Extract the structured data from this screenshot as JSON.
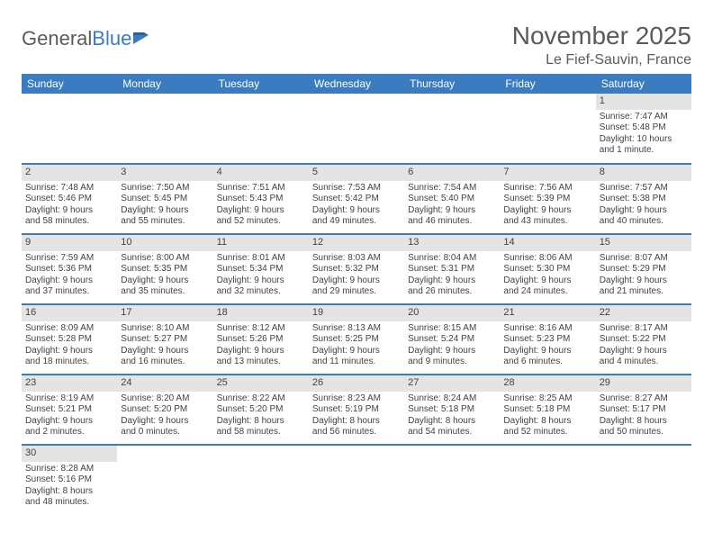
{
  "brand": {
    "part1": "General",
    "part2": "Blue"
  },
  "title": "November 2025",
  "location": "Le Fief-Sauvin, France",
  "colors": {
    "header_bg": "#3b7bbf",
    "daynum_bg": "#e4e4e4",
    "text": "#424242",
    "page_bg": "#ffffff"
  },
  "day_headers": [
    "Sunday",
    "Monday",
    "Tuesday",
    "Wednesday",
    "Thursday",
    "Friday",
    "Saturday"
  ],
  "weeks": [
    [
      null,
      null,
      null,
      null,
      null,
      null,
      {
        "n": "1",
        "sr": "Sunrise: 7:47 AM",
        "ss": "Sunset: 5:48 PM",
        "d1": "Daylight: 10 hours",
        "d2": "and 1 minute."
      }
    ],
    [
      {
        "n": "2",
        "sr": "Sunrise: 7:48 AM",
        "ss": "Sunset: 5:46 PM",
        "d1": "Daylight: 9 hours",
        "d2": "and 58 minutes."
      },
      {
        "n": "3",
        "sr": "Sunrise: 7:50 AM",
        "ss": "Sunset: 5:45 PM",
        "d1": "Daylight: 9 hours",
        "d2": "and 55 minutes."
      },
      {
        "n": "4",
        "sr": "Sunrise: 7:51 AM",
        "ss": "Sunset: 5:43 PM",
        "d1": "Daylight: 9 hours",
        "d2": "and 52 minutes."
      },
      {
        "n": "5",
        "sr": "Sunrise: 7:53 AM",
        "ss": "Sunset: 5:42 PM",
        "d1": "Daylight: 9 hours",
        "d2": "and 49 minutes."
      },
      {
        "n": "6",
        "sr": "Sunrise: 7:54 AM",
        "ss": "Sunset: 5:40 PM",
        "d1": "Daylight: 9 hours",
        "d2": "and 46 minutes."
      },
      {
        "n": "7",
        "sr": "Sunrise: 7:56 AM",
        "ss": "Sunset: 5:39 PM",
        "d1": "Daylight: 9 hours",
        "d2": "and 43 minutes."
      },
      {
        "n": "8",
        "sr": "Sunrise: 7:57 AM",
        "ss": "Sunset: 5:38 PM",
        "d1": "Daylight: 9 hours",
        "d2": "and 40 minutes."
      }
    ],
    [
      {
        "n": "9",
        "sr": "Sunrise: 7:59 AM",
        "ss": "Sunset: 5:36 PM",
        "d1": "Daylight: 9 hours",
        "d2": "and 37 minutes."
      },
      {
        "n": "10",
        "sr": "Sunrise: 8:00 AM",
        "ss": "Sunset: 5:35 PM",
        "d1": "Daylight: 9 hours",
        "d2": "and 35 minutes."
      },
      {
        "n": "11",
        "sr": "Sunrise: 8:01 AM",
        "ss": "Sunset: 5:34 PM",
        "d1": "Daylight: 9 hours",
        "d2": "and 32 minutes."
      },
      {
        "n": "12",
        "sr": "Sunrise: 8:03 AM",
        "ss": "Sunset: 5:32 PM",
        "d1": "Daylight: 9 hours",
        "d2": "and 29 minutes."
      },
      {
        "n": "13",
        "sr": "Sunrise: 8:04 AM",
        "ss": "Sunset: 5:31 PM",
        "d1": "Daylight: 9 hours",
        "d2": "and 26 minutes."
      },
      {
        "n": "14",
        "sr": "Sunrise: 8:06 AM",
        "ss": "Sunset: 5:30 PM",
        "d1": "Daylight: 9 hours",
        "d2": "and 24 minutes."
      },
      {
        "n": "15",
        "sr": "Sunrise: 8:07 AM",
        "ss": "Sunset: 5:29 PM",
        "d1": "Daylight: 9 hours",
        "d2": "and 21 minutes."
      }
    ],
    [
      {
        "n": "16",
        "sr": "Sunrise: 8:09 AM",
        "ss": "Sunset: 5:28 PM",
        "d1": "Daylight: 9 hours",
        "d2": "and 18 minutes."
      },
      {
        "n": "17",
        "sr": "Sunrise: 8:10 AM",
        "ss": "Sunset: 5:27 PM",
        "d1": "Daylight: 9 hours",
        "d2": "and 16 minutes."
      },
      {
        "n": "18",
        "sr": "Sunrise: 8:12 AM",
        "ss": "Sunset: 5:26 PM",
        "d1": "Daylight: 9 hours",
        "d2": "and 13 minutes."
      },
      {
        "n": "19",
        "sr": "Sunrise: 8:13 AM",
        "ss": "Sunset: 5:25 PM",
        "d1": "Daylight: 9 hours",
        "d2": "and 11 minutes."
      },
      {
        "n": "20",
        "sr": "Sunrise: 8:15 AM",
        "ss": "Sunset: 5:24 PM",
        "d1": "Daylight: 9 hours",
        "d2": "and 9 minutes."
      },
      {
        "n": "21",
        "sr": "Sunrise: 8:16 AM",
        "ss": "Sunset: 5:23 PM",
        "d1": "Daylight: 9 hours",
        "d2": "and 6 minutes."
      },
      {
        "n": "22",
        "sr": "Sunrise: 8:17 AM",
        "ss": "Sunset: 5:22 PM",
        "d1": "Daylight: 9 hours",
        "d2": "and 4 minutes."
      }
    ],
    [
      {
        "n": "23",
        "sr": "Sunrise: 8:19 AM",
        "ss": "Sunset: 5:21 PM",
        "d1": "Daylight: 9 hours",
        "d2": "and 2 minutes."
      },
      {
        "n": "24",
        "sr": "Sunrise: 8:20 AM",
        "ss": "Sunset: 5:20 PM",
        "d1": "Daylight: 9 hours",
        "d2": "and 0 minutes."
      },
      {
        "n": "25",
        "sr": "Sunrise: 8:22 AM",
        "ss": "Sunset: 5:20 PM",
        "d1": "Daylight: 8 hours",
        "d2": "and 58 minutes."
      },
      {
        "n": "26",
        "sr": "Sunrise: 8:23 AM",
        "ss": "Sunset: 5:19 PM",
        "d1": "Daylight: 8 hours",
        "d2": "and 56 minutes."
      },
      {
        "n": "27",
        "sr": "Sunrise: 8:24 AM",
        "ss": "Sunset: 5:18 PM",
        "d1": "Daylight: 8 hours",
        "d2": "and 54 minutes."
      },
      {
        "n": "28",
        "sr": "Sunrise: 8:25 AM",
        "ss": "Sunset: 5:18 PM",
        "d1": "Daylight: 8 hours",
        "d2": "and 52 minutes."
      },
      {
        "n": "29",
        "sr": "Sunrise: 8:27 AM",
        "ss": "Sunset: 5:17 PM",
        "d1": "Daylight: 8 hours",
        "d2": "and 50 minutes."
      }
    ],
    [
      {
        "n": "30",
        "sr": "Sunrise: 8:28 AM",
        "ss": "Sunset: 5:16 PM",
        "d1": "Daylight: 8 hours",
        "d2": "and 48 minutes."
      },
      null,
      null,
      null,
      null,
      null,
      null
    ]
  ]
}
